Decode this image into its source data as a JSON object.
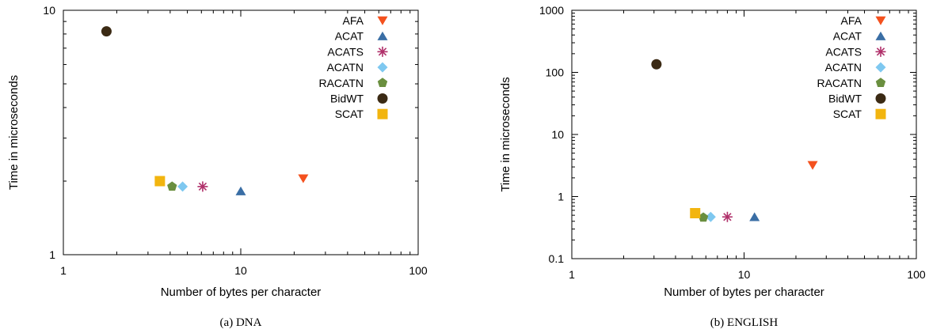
{
  "chart_data": [
    {
      "type": "scatter",
      "caption": "(a) DNA",
      "xlabel": "Number of bytes per character",
      "ylabel": "Time in microseconds",
      "xscale": "log",
      "yscale": "log",
      "xlim": [
        1,
        100
      ],
      "ylim": [
        1,
        10
      ],
      "xticks": [
        "1",
        "10",
        "100"
      ],
      "yticks": [
        "1",
        "10"
      ],
      "legend_position": "top-right",
      "grid": false,
      "series": [
        {
          "name": "AFA",
          "marker": "triangle-down",
          "color": "#f4511e",
          "x": 22.5,
          "y": 2.05
        },
        {
          "name": "ACAT",
          "marker": "triangle-up",
          "color": "#3a6ea5",
          "x": 10.0,
          "y": 1.82
        },
        {
          "name": "ACATS",
          "marker": "asterisk",
          "color": "#b0306a",
          "x": 6.1,
          "y": 1.9
        },
        {
          "name": "ACATN",
          "marker": "diamond",
          "color": "#7ec8f0",
          "x": 4.7,
          "y": 1.9
        },
        {
          "name": "RACATN",
          "marker": "pentagon",
          "color": "#6a8f3f",
          "x": 4.1,
          "y": 1.9
        },
        {
          "name": "BidWT",
          "marker": "circle",
          "color": "#3b2a14",
          "x": 1.75,
          "y": 8.2
        },
        {
          "name": "SCAT",
          "marker": "square",
          "color": "#f2b50f",
          "x": 3.5,
          "y": 2.0
        }
      ]
    },
    {
      "type": "scatter",
      "caption": "(b) ENGLISH",
      "xlabel": "Number of bytes per character",
      "ylabel": "Time in microseconds",
      "xscale": "log",
      "yscale": "log",
      "xlim": [
        1,
        100
      ],
      "ylim": [
        0.1,
        1000
      ],
      "xticks": [
        "1",
        "10",
        "100"
      ],
      "yticks": [
        "0.1",
        "1",
        "10",
        "100",
        "1000"
      ],
      "legend_position": "top-right",
      "grid": false,
      "series": [
        {
          "name": "AFA",
          "marker": "triangle-down",
          "color": "#f4511e",
          "x": 25,
          "y": 3.2
        },
        {
          "name": "ACAT",
          "marker": "triangle-up",
          "color": "#3a6ea5",
          "x": 11.5,
          "y": 0.47
        },
        {
          "name": "ACATS",
          "marker": "asterisk",
          "color": "#b0306a",
          "x": 8.0,
          "y": 0.47
        },
        {
          "name": "ACATN",
          "marker": "diamond",
          "color": "#7ec8f0",
          "x": 6.4,
          "y": 0.47
        },
        {
          "name": "RACATN",
          "marker": "pentagon",
          "color": "#6a8f3f",
          "x": 5.8,
          "y": 0.46
        },
        {
          "name": "BidWT",
          "marker": "circle",
          "color": "#3b2a14",
          "x": 3.1,
          "y": 135
        },
        {
          "name": "SCAT",
          "marker": "square",
          "color": "#f2b50f",
          "x": 5.2,
          "y": 0.54
        }
      ]
    }
  ]
}
